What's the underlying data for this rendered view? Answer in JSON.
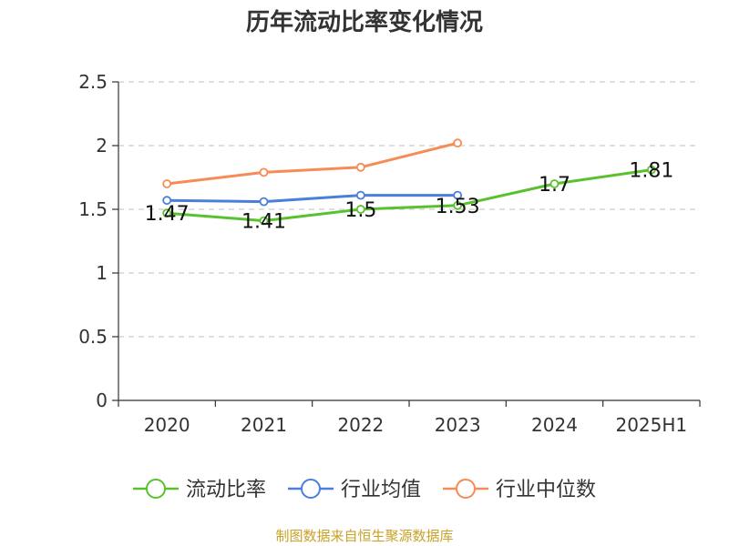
{
  "chart_data": {
    "type": "line",
    "title": "历年流动比率变化情况",
    "categories": [
      "2020",
      "2021",
      "2022",
      "2023",
      "2024",
      "2025H1"
    ],
    "ylim": [
      0,
      2.5
    ],
    "yticks": [
      "0",
      "0.5",
      "1",
      "1.5",
      "2",
      "2.5"
    ],
    "grid": true,
    "legend_position": "bottom",
    "series": [
      {
        "name": "流动比率",
        "color": "#5ac12e",
        "values": [
          1.47,
          1.41,
          1.5,
          1.53,
          1.7,
          1.81
        ],
        "labels": [
          "1.47",
          "1.41",
          "1.5",
          "1.53",
          "1.7",
          "1.81"
        ]
      },
      {
        "name": "行业均值",
        "color": "#4a7fdb",
        "values": [
          1.57,
          1.56,
          1.61,
          1.61,
          null,
          null
        ]
      },
      {
        "name": "行业中位数",
        "color": "#f68c55",
        "values": [
          1.7,
          1.79,
          1.83,
          2.02,
          null,
          null
        ]
      }
    ]
  },
  "source": "制图数据来自恒生聚源数据库"
}
